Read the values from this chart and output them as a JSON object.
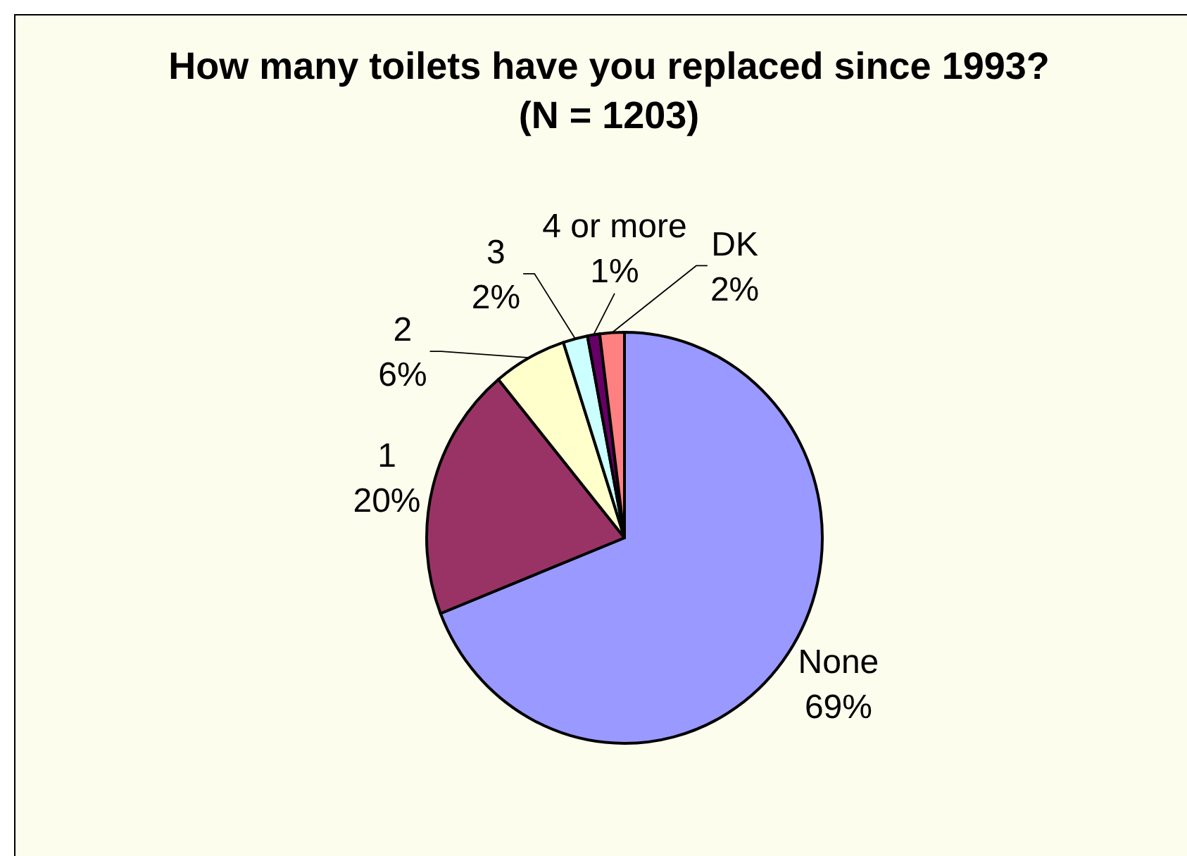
{
  "chart_data": {
    "type": "pie",
    "title": "How many toilets have you replaced since 1993?",
    "subtitle": "(N = 1203)",
    "categories": [
      "None",
      "1",
      "2",
      "3",
      "4 or more",
      "DK"
    ],
    "values": [
      69,
      20,
      6,
      2,
      1,
      2
    ],
    "value_labels": [
      "69%",
      "20%",
      "6%",
      "2%",
      "1%",
      "2%"
    ],
    "colors": [
      "#9999ff",
      "#993366",
      "#ffffcc",
      "#ccffff",
      "#660066",
      "#ff8080"
    ]
  }
}
